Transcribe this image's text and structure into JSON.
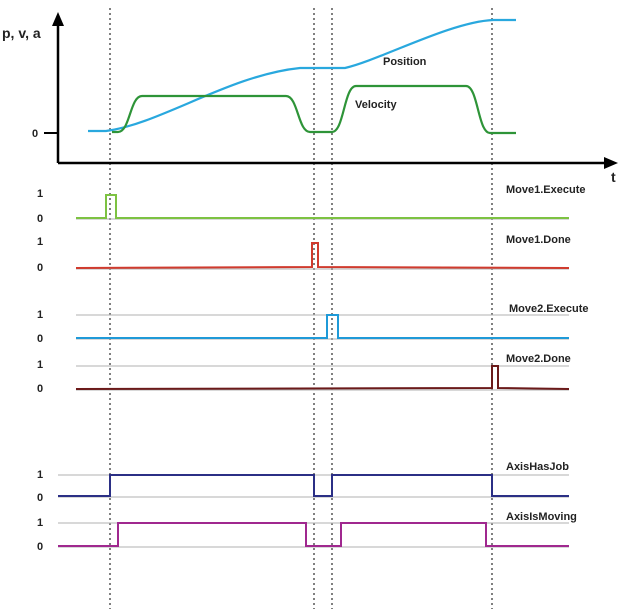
{
  "top_chart": {
    "y_axis_label": "p, v, a",
    "x_axis_label": "t",
    "zero_label": "0",
    "curves": [
      {
        "name": "Position",
        "color": "#29a8de"
      },
      {
        "name": "Velocity",
        "color": "#2e9438"
      }
    ]
  },
  "signals": [
    {
      "name": "Move1.Execute",
      "color": "#7dc242",
      "high_label": "1",
      "low_label": "0"
    },
    {
      "name": "Move1.Done",
      "color": "#d03b2e",
      "high_label": "1",
      "low_label": "0"
    },
    {
      "name": "Move2.Execute",
      "color": "#1f9ad8",
      "high_label": "1",
      "low_label": "0"
    },
    {
      "name": "Move2.Done",
      "color": "#6b1a1a",
      "high_label": "1",
      "low_label": "0"
    },
    {
      "name": "AxisHasJob",
      "color": "#2b2f85",
      "high_label": "1",
      "low_label": "0"
    },
    {
      "name": "AxisIsMoving",
      "color": "#a0288f",
      "high_label": "1",
      "low_label": "0"
    }
  ],
  "colors": {
    "axis": "#000000",
    "baseline": "#b0b0b0",
    "marker": "#808080"
  }
}
